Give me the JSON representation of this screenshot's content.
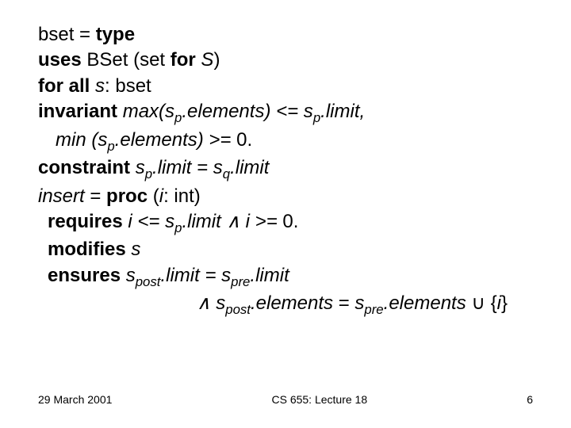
{
  "l1_a": "bset = ",
  "l1_b": "type",
  "l2_a": "uses",
  "l2_b": " BSet (set ",
  "l2_c": "for ",
  "l2_d": "S",
  "l2_e": ")",
  "l3_a": "for all ",
  "l3_b": "s",
  "l3_c": ": bset",
  "l4_a": "invariant ",
  "l4_b": "max(s",
  "l4_c": "p",
  "l4_d": ".elements) <= s",
  "l4_e": "p",
  "l4_f": ".limit,",
  "l5_a": "min (s",
  "l5_b": "p",
  "l5_c": ".elements) >= ",
  "l5_d": "0.",
  "l6_a": "constraint ",
  "l6_b": "s",
  "l6_c": "p",
  "l6_d": ".limit = s",
  "l6_e": "q",
  "l6_f": ".limit",
  "l7_a": "insert ",
  "l7_b": "= ",
  "l7_c": "proc ",
  "l7_d": "(",
  "l7_e": "i",
  "l7_f": ": int)",
  "l8_a": "requires ",
  "l8_b": "i <= s",
  "l8_c": "p",
  "l8_d": ".limit ",
  "l8_e": "∧",
  "l8_f": " i >= ",
  "l8_g": "0.",
  "l9_a": "modifies ",
  "l9_b": "s",
  "l10_a": "ensures ",
  "l10_b": "s",
  "l10_c": "post",
  "l10_d": ".limit = s",
  "l10_e": "pre",
  "l10_f": ".limit",
  "l11_a": "∧",
  "l11_b": " s",
  "l11_c": "post",
  "l11_d": ".elements ",
  "l11_e": "= ",
  "l11_f": " s",
  "l11_g": "pre",
  "l11_h": ".elements ",
  "l11_i": "∪",
  "l11_j": " {",
  "l11_k": "i",
  "l11_l": "}",
  "footer_date": "29 March 2001",
  "footer_title": "CS 655: Lecture 18",
  "footer_page": "6"
}
